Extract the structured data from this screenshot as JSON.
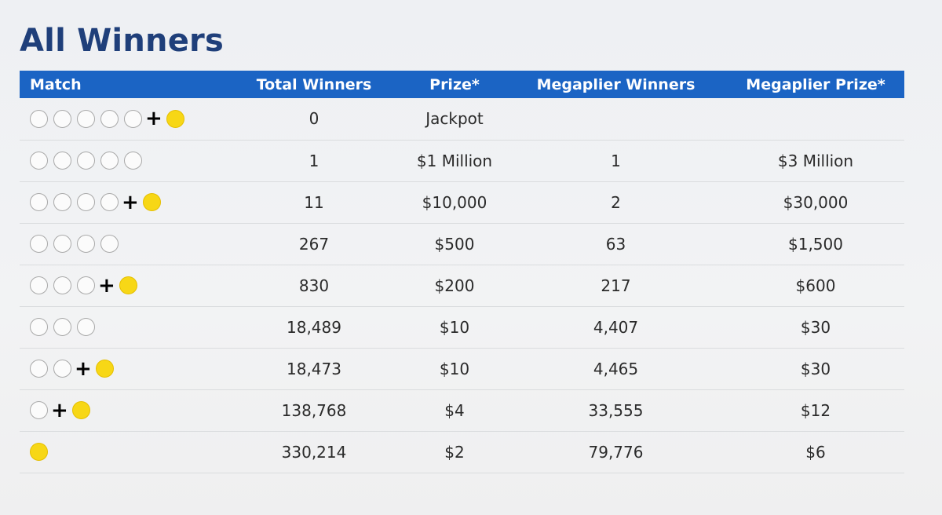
{
  "title": "All Winners",
  "columns": [
    "Match",
    "Total Winners",
    "Prize*",
    "Megaplier Winners",
    "Megaplier Prize*"
  ],
  "colors": {
    "header_bg": "#1b64c4",
    "title": "#1f3f7a",
    "gold_ball": "#f7d716",
    "white_ball": "#fbfbfb"
  },
  "rows": [
    {
      "white_balls": 5,
      "gold_ball": true,
      "total_winners": "0",
      "prize": "Jackpot",
      "megaplier_winners": "",
      "megaplier_prize": ""
    },
    {
      "white_balls": 5,
      "gold_ball": false,
      "total_winners": "1",
      "prize": "$1 Million",
      "megaplier_winners": "1",
      "megaplier_prize": "$3 Million"
    },
    {
      "white_balls": 4,
      "gold_ball": true,
      "total_winners": "11",
      "prize": "$10,000",
      "megaplier_winners": "2",
      "megaplier_prize": "$30,000"
    },
    {
      "white_balls": 4,
      "gold_ball": false,
      "total_winners": "267",
      "prize": "$500",
      "megaplier_winners": "63",
      "megaplier_prize": "$1,500"
    },
    {
      "white_balls": 3,
      "gold_ball": true,
      "total_winners": "830",
      "prize": "$200",
      "megaplier_winners": "217",
      "megaplier_prize": "$600"
    },
    {
      "white_balls": 3,
      "gold_ball": false,
      "total_winners": "18,489",
      "prize": "$10",
      "megaplier_winners": "4,407",
      "megaplier_prize": "$30"
    },
    {
      "white_balls": 2,
      "gold_ball": true,
      "total_winners": "18,473",
      "prize": "$10",
      "megaplier_winners": "4,465",
      "megaplier_prize": "$30"
    },
    {
      "white_balls": 1,
      "gold_ball": true,
      "total_winners": "138,768",
      "prize": "$4",
      "megaplier_winners": "33,555",
      "megaplier_prize": "$12"
    },
    {
      "white_balls": 0,
      "gold_ball": true,
      "total_winners": "330,214",
      "prize": "$2",
      "megaplier_winners": "79,776",
      "megaplier_prize": "$6"
    }
  ]
}
